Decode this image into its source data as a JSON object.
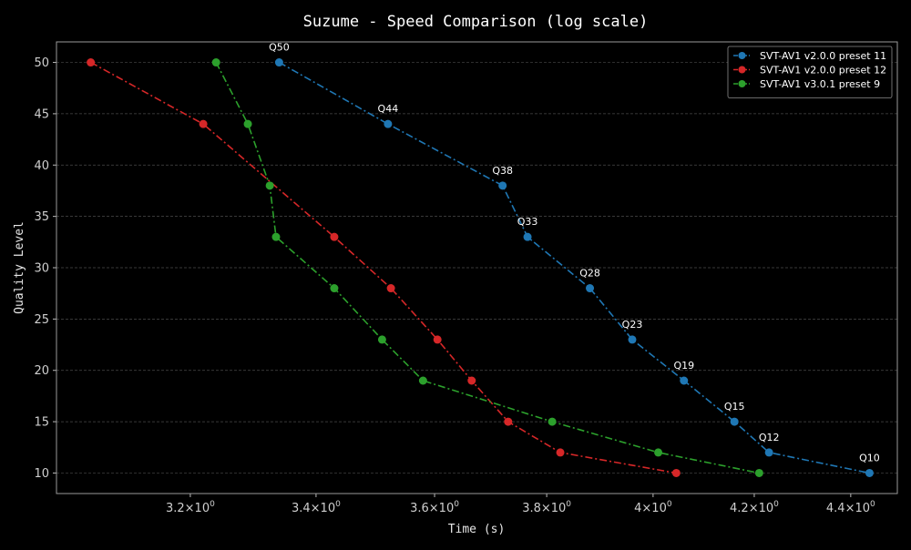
{
  "chart_data": {
    "type": "line",
    "title": "Suzume - Speed Comparison (log scale)",
    "xlabel": "Time (s)",
    "ylabel": "Quality Level",
    "x_scale": "log",
    "xlim": [
      3.0,
      4.5
    ],
    "ylim": [
      8,
      52
    ],
    "x_ticks": [
      {
        "value": 3.2,
        "mant": "3.2",
        "exp": "0"
      },
      {
        "value": 3.4,
        "mant": "3.4",
        "exp": "0"
      },
      {
        "value": 3.6,
        "mant": "3.6",
        "exp": "0"
      },
      {
        "value": 3.8,
        "mant": "3.8",
        "exp": "0"
      },
      {
        "value": 4.0,
        "mant": "4",
        "exp": "0"
      },
      {
        "value": 4.2,
        "mant": "4.2",
        "exp": "0"
      },
      {
        "value": 4.4,
        "mant": "4.4",
        "exp": "0"
      }
    ],
    "y_ticks": [
      10,
      15,
      20,
      25,
      30,
      35,
      40,
      45,
      50
    ],
    "grid": true,
    "legend_position": "top-right",
    "times_sign": "×",
    "series": [
      {
        "name": "SVT-AV1 v2.0.0 preset 11",
        "color": "#1f77b4",
        "x": [
          3.34,
          3.52,
          3.72,
          3.765,
          3.88,
          3.96,
          4.06,
          4.16,
          4.23,
          4.44
        ],
        "y": [
          50,
          44,
          38,
          33,
          28,
          23,
          19,
          15,
          12,
          10
        ],
        "point_labels": [
          "Q50",
          "Q44",
          "Q38",
          "Q33",
          "Q28",
          "Q23",
          "Q19",
          "Q15",
          "Q12",
          "Q10"
        ]
      },
      {
        "name": "SVT-AV1 v2.0.0 preset 12",
        "color": "#d62728",
        "x": [
          3.05,
          3.22,
          3.43,
          3.525,
          3.605,
          3.665,
          3.73,
          3.825,
          4.045
        ],
        "y": [
          50,
          44,
          33,
          28,
          23,
          19,
          15,
          12,
          10
        ]
      },
      {
        "name": "SVT-AV1 v3.0.1 preset 9",
        "color": "#2ca02c",
        "x": [
          3.24,
          3.29,
          3.325,
          3.335,
          3.43,
          3.51,
          3.58,
          3.81,
          4.01,
          4.21
        ],
        "y": [
          50,
          44,
          38,
          33,
          28,
          23,
          19,
          15,
          12,
          10
        ]
      }
    ]
  }
}
